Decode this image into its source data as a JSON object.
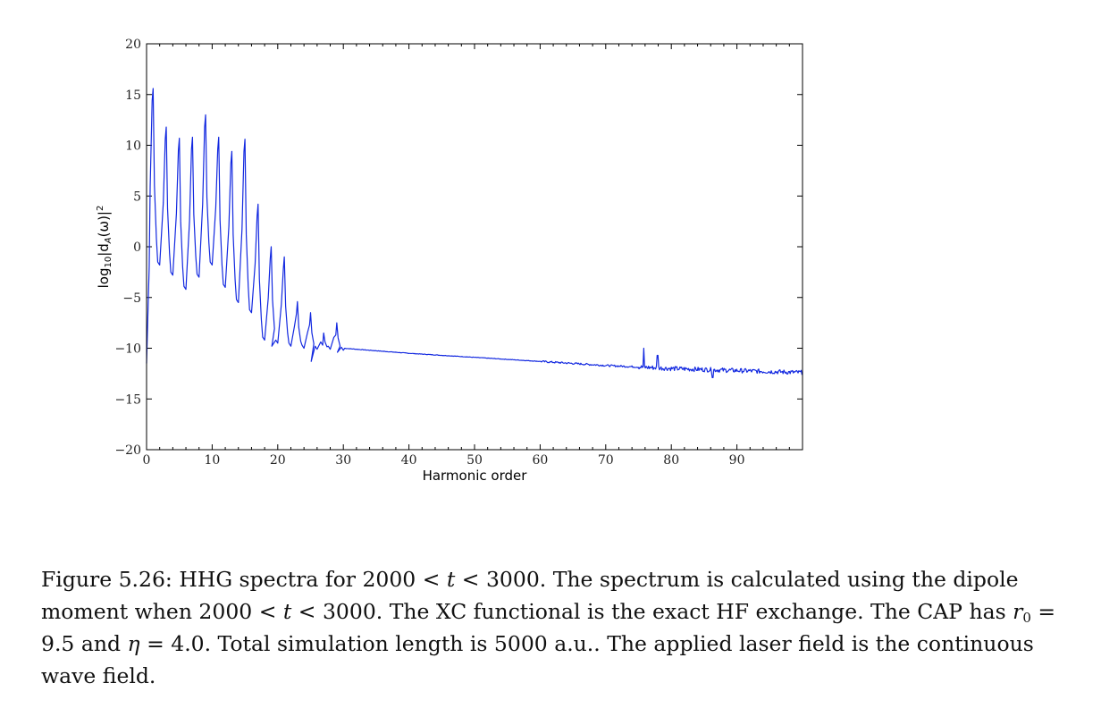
{
  "chart_data": {
    "type": "line",
    "title": "",
    "xlabel": "Harmonic order",
    "ylabel_parts": {
      "prefix": "log",
      "sub": "10",
      "body": "|d",
      "sub2": "A",
      "mid": "(ω)|",
      "sup": "2"
    },
    "xlim": [
      0,
      100
    ],
    "ylim": [
      -20,
      20
    ],
    "x_ticks": [
      0,
      10,
      20,
      30,
      40,
      50,
      60,
      70,
      80,
      90
    ],
    "y_ticks": [
      20,
      15,
      10,
      5,
      0,
      -5,
      -10,
      -15,
      -20
    ],
    "y_tick_labels": [
      "20",
      "15",
      "10",
      "5",
      "0",
      "−5",
      "−10",
      "−15",
      "−20"
    ],
    "grid": false,
    "line_color": "#1228e0",
    "series": [
      {
        "harmonic_peaks": [
          {
            "x": 1,
            "y": 15.6
          },
          {
            "x": 3,
            "y": 11.8
          },
          {
            "x": 5,
            "y": 10.7
          },
          {
            "x": 7,
            "y": 10.8
          },
          {
            "x": 9,
            "y": 13.0
          },
          {
            "x": 11,
            "y": 10.8
          },
          {
            "x": 13,
            "y": 9.4
          },
          {
            "x": 15,
            "y": 10.6
          },
          {
            "x": 17,
            "y": 4.2
          },
          {
            "x": 19,
            "y": 0.0
          },
          {
            "x": 21,
            "y": -1.0
          },
          {
            "x": 23,
            "y": -5.4
          },
          {
            "x": 25,
            "y": -6.5
          },
          {
            "x": 27,
            "y": -8.5
          },
          {
            "x": 29,
            "y": -7.5
          }
        ],
        "troughs": [
          {
            "x": 2,
            "y": -1.8
          },
          {
            "x": 4,
            "y": -2.8
          },
          {
            "x": 6,
            "y": -4.2
          },
          {
            "x": 8,
            "y": -3.0
          },
          {
            "x": 10,
            "y": -1.8
          },
          {
            "x": 12,
            "y": -4.0
          },
          {
            "x": 14,
            "y": -5.5
          },
          {
            "x": 16,
            "y": -6.5
          },
          {
            "x": 18,
            "y": -9.2
          },
          {
            "x": 20,
            "y": -9.5
          },
          {
            "x": 22,
            "y": -9.8
          },
          {
            "x": 24,
            "y": -10.0
          },
          {
            "x": 26,
            "y": -10.1
          },
          {
            "x": 28,
            "y": -10.1
          },
          {
            "x": 30,
            "y": -10.2
          }
        ],
        "special_points": [
          {
            "x": 0.0,
            "y": -11.5
          },
          {
            "x": 0.4,
            "y": -2.0
          },
          {
            "x": 12.3,
            "y": -7.8
          },
          {
            "x": 19.2,
            "y": -9.8
          },
          {
            "x": 25.1,
            "y": -11.3
          },
          {
            "x": 29.1,
            "y": -10.4
          }
        ],
        "background_decay": [
          {
            "x": 30,
            "y": -10.0
          },
          {
            "x": 40,
            "y": -10.5
          },
          {
            "x": 50,
            "y": -10.9
          },
          {
            "x": 60,
            "y": -11.3
          },
          {
            "x": 70,
            "y": -11.7
          },
          {
            "x": 80,
            "y": -12.0
          },
          {
            "x": 90,
            "y": -12.2
          },
          {
            "x": 100,
            "y": -12.4
          }
        ],
        "late_spikes": [
          {
            "x": 75.8,
            "y": -10.0
          },
          {
            "x": 77.9,
            "y": -10.7
          },
          {
            "x": 86.3,
            "y": -12.9
          }
        ]
      }
    ]
  },
  "caption": {
    "label": "Figure 5.26:",
    "s1": " HHG spectra for 2000 < ",
    "var_t1": "t",
    "s2": " < 3000. The spectrum is calculated using the dipole moment when 2000 < ",
    "var_t2": "t",
    "s3": " < 3000. The XC functional is the exact HF exchange. The CAP has ",
    "var_r": "r",
    "sub_r": "0",
    "s4": " = 9.5 and ",
    "var_eta": "η",
    "s5": " = 4.0. Total simulation length is 5000 a.u.. The applied laser field is the continuous wave field."
  }
}
